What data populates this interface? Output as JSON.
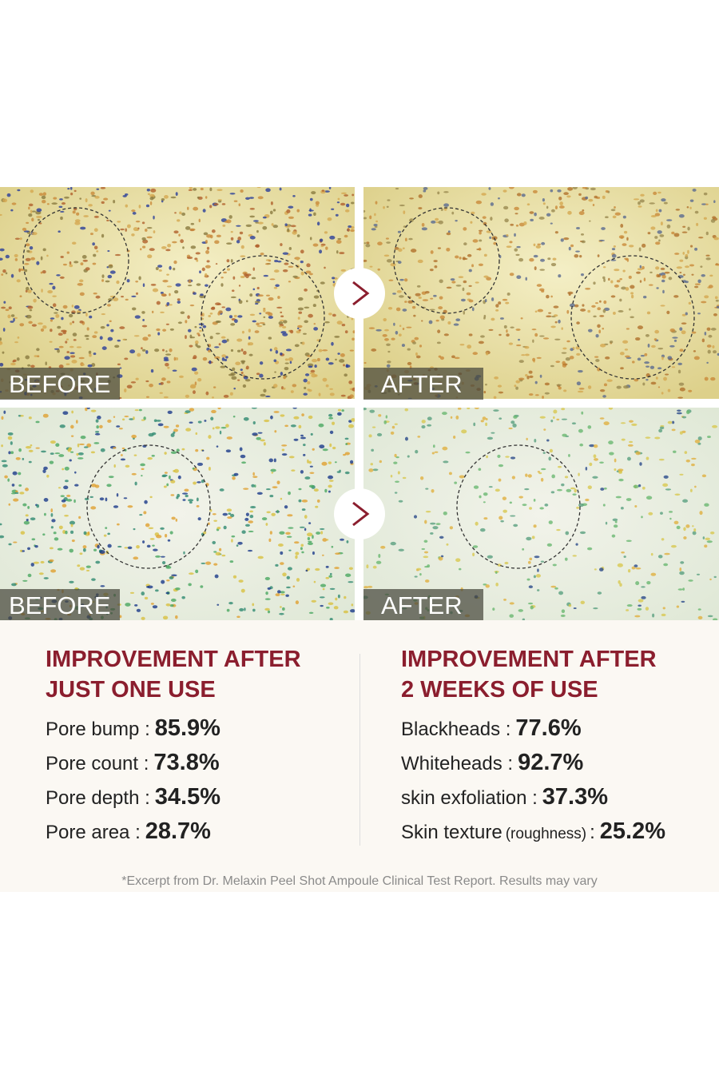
{
  "panels": [
    {
      "label": "BEFORE"
    },
    {
      "label": "AFTER"
    },
    {
      "label": "BEFORE"
    },
    {
      "label": "AFTER"
    }
  ],
  "sections": [
    {
      "heading": [
        "IMPROVEMENT AFTER",
        "JUST ONE USE"
      ],
      "items": [
        {
          "label": "Pore bump :",
          "value": "85.9%"
        },
        {
          "label": "Pore count :",
          "value": "73.8%"
        },
        {
          "label": "Pore depth :",
          "value": "34.5%"
        },
        {
          "label": "Pore area :",
          "value": "28.7%"
        }
      ]
    },
    {
      "heading": [
        "IMPROVEMENT AFTER",
        "2 WEEKS OF USE"
      ],
      "items": [
        {
          "label": "Blackheads :",
          "value": "77.6%"
        },
        {
          "label": "Whiteheads :",
          "value": "92.7%"
        },
        {
          "label": "skin exfoliation :",
          "value": "37.3%"
        },
        {
          "label": "Skin texture",
          "note": "(roughness)",
          "sep": ":",
          "value": "25.2%"
        }
      ]
    }
  ],
  "footnote": "*Excerpt from Dr. Melaxin Peel Shot Ampoule Clinical Test Report. Results may vary"
}
